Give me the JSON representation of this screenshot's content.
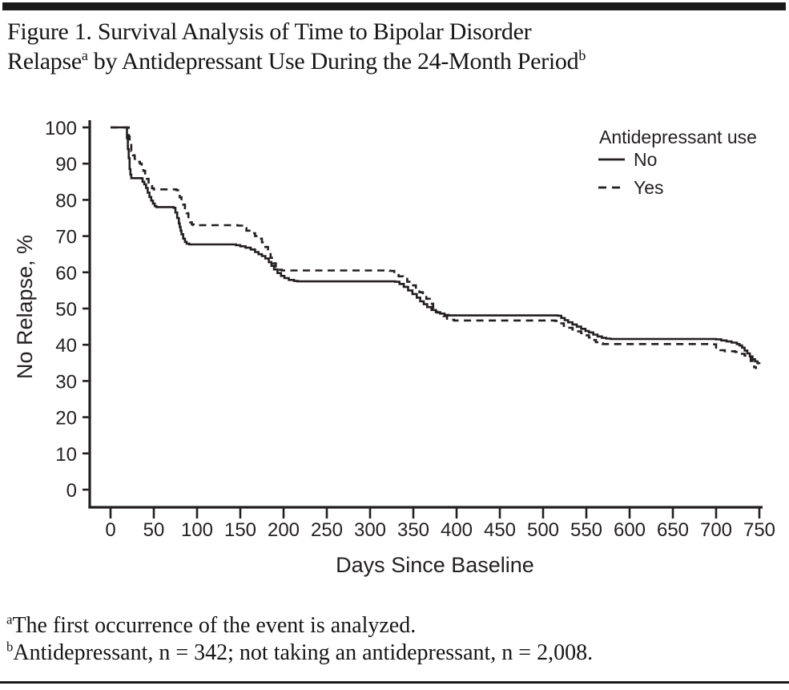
{
  "figure": {
    "title_line1": "Figure 1. Survival Analysis of Time to Bipolar Disorder",
    "title_line2_pre": "Relapse",
    "title_sup_a": "a",
    "title_line2_post": " by Antidepressant Use During the 24-Month Period",
    "title_sup_b": "b",
    "footnote_a_sup": "a",
    "footnote_a_text": "The first occurrence of the event is analyzed.",
    "footnote_b_sup": "b",
    "footnote_b_text": "Antidepressant, n = 342; not taking an antidepressant, n = 2,008."
  },
  "colors": {
    "ink": "#231f20",
    "background": "#ffffff"
  },
  "chart_data": {
    "type": "line",
    "subtype": "kaplan-meier-step",
    "title": "",
    "xlabel": "Days Since Baseline",
    "ylabel": "No Relapse, %",
    "xlim": [
      0,
      750
    ],
    "ylim": [
      0,
      100
    ],
    "xticks": [
      0,
      50,
      100,
      150,
      200,
      250,
      300,
      350,
      400,
      450,
      500,
      550,
      600,
      650,
      700,
      750
    ],
    "yticks": [
      0,
      10,
      20,
      30,
      40,
      50,
      60,
      70,
      80,
      90,
      100
    ],
    "grid": false,
    "legend": {
      "title": "Antidepressant use",
      "position": "top-right"
    },
    "series": [
      {
        "name": "No",
        "line": "solid",
        "color": "#231f20",
        "points": [
          [
            0,
            100
          ],
          [
            18,
            100
          ],
          [
            19,
            97
          ],
          [
            20,
            94
          ],
          [
            21,
            91.5
          ],
          [
            22,
            88.5
          ],
          [
            23,
            87
          ],
          [
            24,
            86
          ],
          [
            36,
            85.9
          ],
          [
            37,
            85
          ],
          [
            39,
            84.3
          ],
          [
            41,
            83.3
          ],
          [
            43,
            82
          ],
          [
            45,
            80.8
          ],
          [
            47,
            79.8
          ],
          [
            49,
            79
          ],
          [
            51,
            78.3
          ],
          [
            53,
            78
          ],
          [
            73,
            77.8
          ],
          [
            75,
            76.5
          ],
          [
            77,
            75
          ],
          [
            79,
            73.5
          ],
          [
            80,
            72.5
          ],
          [
            81,
            71.5
          ],
          [
            82,
            70.5
          ],
          [
            84,
            69.3
          ],
          [
            86,
            68.4
          ],
          [
            88,
            67.9
          ],
          [
            91,
            67.7
          ],
          [
            145,
            67.5
          ],
          [
            150,
            67.2
          ],
          [
            156,
            66.8
          ],
          [
            162,
            66.3
          ],
          [
            167,
            65.6
          ],
          [
            171,
            65
          ],
          [
            175,
            64.5
          ],
          [
            179,
            63.8
          ],
          [
            183,
            62.8
          ],
          [
            186,
            61.8
          ],
          [
            189,
            60.8
          ],
          [
            193,
            59.8
          ],
          [
            197,
            59
          ],
          [
            201,
            58.4
          ],
          [
            206,
            57.9
          ],
          [
            212,
            57.6
          ],
          [
            216,
            57.5
          ],
          [
            329,
            57.4
          ],
          [
            334,
            56.8
          ],
          [
            339,
            56
          ],
          [
            344,
            55
          ],
          [
            349,
            54
          ],
          [
            354,
            53
          ],
          [
            358,
            52
          ],
          [
            362,
            51.2
          ],
          [
            366,
            50.4
          ],
          [
            371,
            49.6
          ],
          [
            376,
            49
          ],
          [
            381,
            48.6
          ],
          [
            386,
            48.2
          ],
          [
            391,
            48.1
          ],
          [
            517,
            48
          ],
          [
            521,
            47.4
          ],
          [
            525,
            46.8
          ],
          [
            529,
            46.2
          ],
          [
            534,
            45.6
          ],
          [
            539,
            45
          ],
          [
            544,
            44.4
          ],
          [
            549,
            43.8
          ],
          [
            553,
            43.4
          ],
          [
            558,
            42.8
          ],
          [
            563,
            42.3
          ],
          [
            568,
            41.9
          ],
          [
            573,
            41.7
          ],
          [
            578,
            41.6
          ],
          [
            700,
            41.5
          ],
          [
            706,
            41.2
          ],
          [
            712,
            40.9
          ],
          [
            718,
            40.6
          ],
          [
            724,
            40.2
          ],
          [
            727,
            39.8
          ],
          [
            730,
            39.2
          ],
          [
            733,
            38.4
          ],
          [
            736,
            37.6
          ],
          [
            739,
            36.8
          ],
          [
            742,
            36
          ],
          [
            745,
            35.4
          ],
          [
            748,
            34.9
          ],
          [
            750,
            34.7
          ]
        ]
      },
      {
        "name": "Yes",
        "line": "dashed",
        "color": "#231f20",
        "points": [
          [
            0,
            100
          ],
          [
            20,
            100
          ],
          [
            21,
            97.5
          ],
          [
            22,
            95.5
          ],
          [
            24,
            93.5
          ],
          [
            26,
            92.3
          ],
          [
            28,
            91.3
          ],
          [
            31,
            90.5
          ],
          [
            34,
            90
          ],
          [
            36,
            89
          ],
          [
            38,
            88
          ],
          [
            40,
            86.8
          ],
          [
            42,
            85.8
          ],
          [
            44,
            84.8
          ],
          [
            46,
            83.8
          ],
          [
            48,
            83.2
          ],
          [
            50,
            82.9
          ],
          [
            76,
            82.7
          ],
          [
            78,
            81.7
          ],
          [
            80,
            80.7
          ],
          [
            82,
            79.7
          ],
          [
            84,
            78.7
          ],
          [
            86,
            77.7
          ],
          [
            88,
            76.3
          ],
          [
            90,
            74.8
          ],
          [
            92,
            73.8
          ],
          [
            94,
            73.2
          ],
          [
            96,
            73
          ],
          [
            147,
            72.9
          ],
          [
            152,
            72.2
          ],
          [
            157,
            71.5
          ],
          [
            162,
            70.8
          ],
          [
            167,
            70
          ],
          [
            171,
            69.3
          ],
          [
            175,
            68.3
          ],
          [
            179,
            67
          ],
          [
            182,
            65.5
          ],
          [
            185,
            64
          ],
          [
            188,
            62.5
          ],
          [
            191,
            61.3
          ],
          [
            194,
            60.7
          ],
          [
            198,
            60.5
          ],
          [
            323,
            60.4
          ],
          [
            328,
            59.6
          ],
          [
            333,
            58.9
          ],
          [
            338,
            58.2
          ],
          [
            343,
            57.4
          ],
          [
            348,
            56.4
          ],
          [
            353,
            55.4
          ],
          [
            357,
            54.5
          ],
          [
            361,
            53.6
          ],
          [
            365,
            52.7
          ],
          [
            369,
            51.3
          ],
          [
            373,
            50
          ],
          [
            377,
            48.9
          ],
          [
            381,
            48.3
          ],
          [
            385,
            47.9
          ],
          [
            389,
            47.2
          ],
          [
            393,
            46.9
          ],
          [
            397,
            46.7
          ],
          [
            514,
            46.6
          ],
          [
            519,
            45.9
          ],
          [
            524,
            45.2
          ],
          [
            529,
            44.7
          ],
          [
            534,
            44.2
          ],
          [
            539,
            43.7
          ],
          [
            544,
            43.2
          ],
          [
            549,
            42.6
          ],
          [
            553,
            42
          ],
          [
            557,
            41.3
          ],
          [
            561,
            40.7
          ],
          [
            565,
            40.4
          ],
          [
            569,
            40.2
          ],
          [
            695,
            40.1
          ],
          [
            700,
            39.2
          ],
          [
            705,
            38.5
          ],
          [
            710,
            38.2
          ],
          [
            722,
            38
          ],
          [
            728,
            37.5
          ],
          [
            733,
            37
          ],
          [
            737,
            36.5
          ],
          [
            740,
            35.5
          ],
          [
            742,
            34.5
          ],
          [
            744,
            33.8
          ],
          [
            746,
            33.3
          ]
        ]
      }
    ]
  }
}
